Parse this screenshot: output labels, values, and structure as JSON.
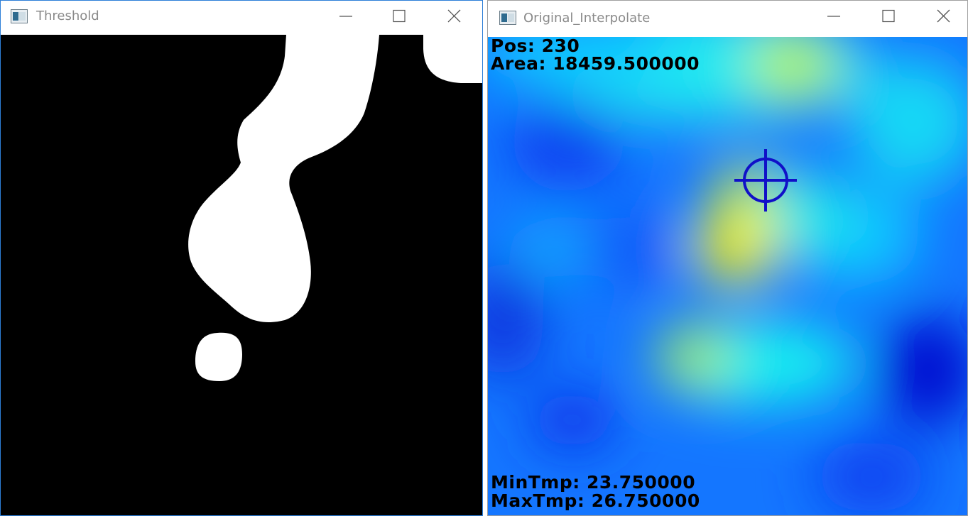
{
  "windows": {
    "threshold": {
      "title": "Threshold",
      "icon": "opencv-window-icon"
    },
    "interpolate": {
      "title": "Original_Interpolate",
      "icon": "opencv-window-icon",
      "overlay": {
        "pos": "Pos: 230",
        "area": "Area: 18459.500000",
        "min_tmp": "MinTmp: 23.750000",
        "max_tmp": "MaxTmp: 26.750000"
      },
      "crosshair_icon": "crosshair-target-icon",
      "crosshair_color": "#1010c8"
    }
  },
  "controls": {
    "minimize": "minimize-icon",
    "maximize": "maximize-icon",
    "close": "close-icon"
  }
}
